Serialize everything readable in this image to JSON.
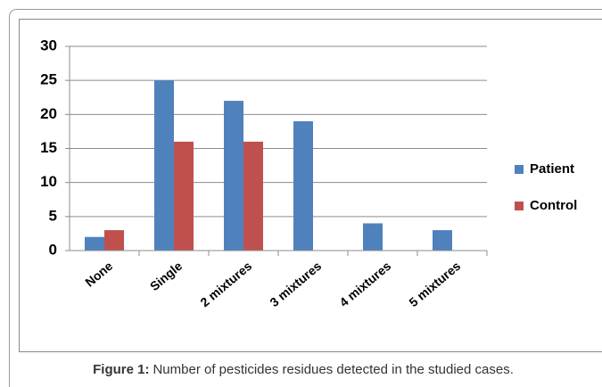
{
  "chart_data": {
    "type": "bar",
    "categories": [
      "None",
      "Single",
      "2 mixtures",
      "3 mixtures",
      "4 mixtures",
      "5 mixtures"
    ],
    "series": [
      {
        "name": "Patient",
        "color": "#4f81bd",
        "values": [
          2,
          25,
          22,
          19,
          4,
          3
        ]
      },
      {
        "name": "Control",
        "color": "#c0504d",
        "values": [
          3,
          16,
          16,
          0,
          0,
          0
        ]
      }
    ],
    "ylim": [
      0,
      30
    ],
    "yticks": [
      0,
      5,
      10,
      15,
      20,
      25,
      30
    ],
    "grid": true,
    "legend": "right",
    "caption_label": "Figure 1:",
    "caption": "Number of pesticides residues detected in the studied cases."
  }
}
